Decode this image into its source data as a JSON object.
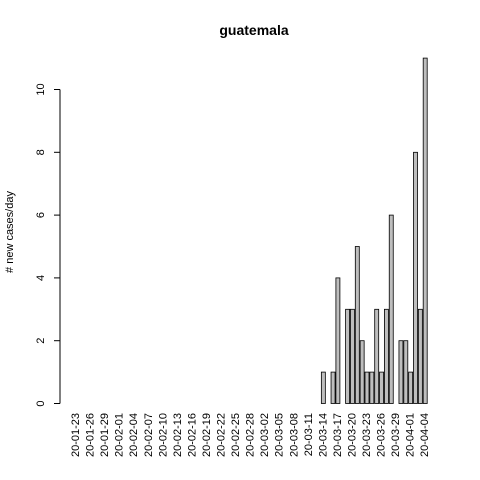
{
  "chart_data": {
    "type": "bar",
    "title": "guatemala",
    "xlabel": "",
    "ylabel": "# new cases/day",
    "ylim": [
      0,
      11
    ],
    "y_ticks": [
      0,
      2,
      4,
      6,
      8,
      10
    ],
    "x_tick_labels": [
      "20-01-23",
      "20-01-26",
      "20-01-29",
      "20-02-01",
      "20-02-04",
      "20-02-07",
      "20-02-10",
      "20-02-13",
      "20-02-16",
      "20-02-19",
      "20-02-22",
      "20-02-25",
      "20-02-28",
      "20-03-02",
      "20-03-05",
      "20-03-08",
      "20-03-11",
      "20-03-14",
      "20-03-17",
      "20-03-20",
      "20-03-23",
      "20-03-26",
      "20-03-29",
      "20-04-01",
      "20-04-04"
    ],
    "categories": [
      "20-01-23",
      "20-01-24",
      "20-01-25",
      "20-01-26",
      "20-01-27",
      "20-01-28",
      "20-01-29",
      "20-01-30",
      "20-01-31",
      "20-02-01",
      "20-02-02",
      "20-02-03",
      "20-02-04",
      "20-02-05",
      "20-02-06",
      "20-02-07",
      "20-02-08",
      "20-02-09",
      "20-02-10",
      "20-02-11",
      "20-02-12",
      "20-02-13",
      "20-02-14",
      "20-02-15",
      "20-02-16",
      "20-02-17",
      "20-02-18",
      "20-02-19",
      "20-02-20",
      "20-02-21",
      "20-02-22",
      "20-02-23",
      "20-02-24",
      "20-02-25",
      "20-02-26",
      "20-02-27",
      "20-02-28",
      "20-02-29",
      "20-03-01",
      "20-03-02",
      "20-03-03",
      "20-03-04",
      "20-03-05",
      "20-03-06",
      "20-03-07",
      "20-03-08",
      "20-03-09",
      "20-03-10",
      "20-03-11",
      "20-03-12",
      "20-03-13",
      "20-03-14",
      "20-03-15",
      "20-03-16",
      "20-03-17",
      "20-03-18",
      "20-03-19",
      "20-03-20",
      "20-03-21",
      "20-03-22",
      "20-03-23",
      "20-03-24",
      "20-03-25",
      "20-03-26",
      "20-03-27",
      "20-03-28",
      "20-03-29",
      "20-03-30",
      "20-03-31",
      "20-04-01",
      "20-04-02",
      "20-04-03",
      "20-04-04"
    ],
    "values": [
      0,
      0,
      0,
      0,
      0,
      0,
      0,
      0,
      0,
      0,
      0,
      0,
      0,
      0,
      0,
      0,
      0,
      0,
      0,
      0,
      0,
      0,
      0,
      0,
      0,
      0,
      0,
      0,
      0,
      0,
      0,
      0,
      0,
      0,
      0,
      0,
      0,
      0,
      0,
      0,
      0,
      0,
      0,
      0,
      0,
      0,
      0,
      0,
      0,
      0,
      0,
      1,
      0,
      1,
      4,
      0,
      3,
      3,
      5,
      2,
      1,
      1,
      3,
      1,
      3,
      6,
      0,
      2,
      2,
      1,
      8,
      3,
      11
    ],
    "bar_color": "#bebebe",
    "grid": false
  }
}
